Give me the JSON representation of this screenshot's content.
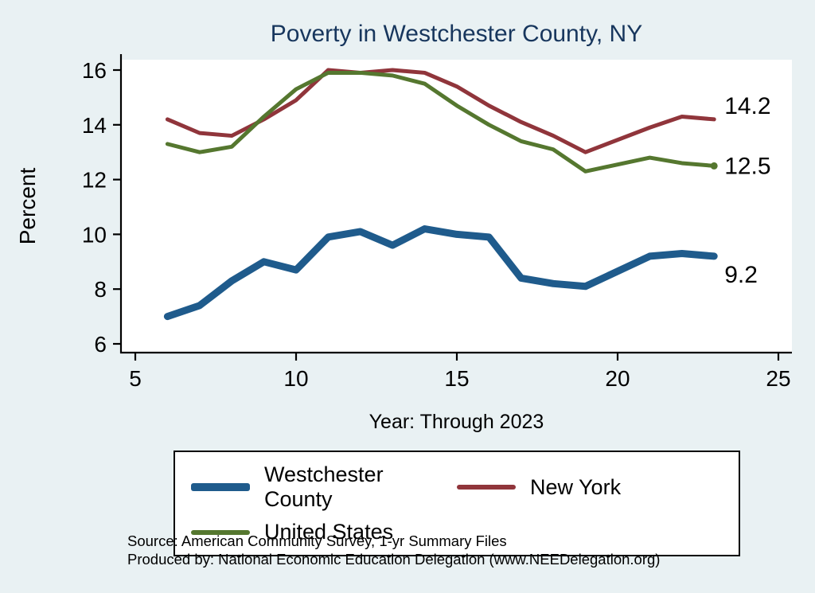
{
  "page": {
    "background": "#e9f1f3"
  },
  "chart_data": {
    "type": "line",
    "title": "Poverty in Westchester County, NY",
    "xlabel": "Year: Through 2023",
    "ylabel": "Percent",
    "xlim": [
      5,
      25
    ],
    "ylim": [
      6,
      16.4
    ],
    "x_ticks": [
      5,
      10,
      15,
      20,
      25
    ],
    "y_ticks": [
      6,
      8,
      10,
      12,
      14,
      16
    ],
    "grid": false,
    "legend_position": "bottom",
    "x": [
      6,
      7,
      8,
      9,
      10,
      11,
      12,
      13,
      14,
      15,
      16,
      17,
      18,
      19,
      21,
      22,
      23
    ],
    "series": [
      {
        "name": "Westchester County",
        "color": "#1f5b8c",
        "line_width": 9,
        "end_label": "9.2",
        "end_marker": false,
        "values": [
          7.0,
          7.4,
          8.3,
          9.0,
          8.7,
          9.9,
          10.1,
          9.6,
          10.2,
          10.0,
          9.9,
          8.4,
          8.2,
          8.1,
          9.2,
          9.3,
          9.2
        ]
      },
      {
        "name": "New York",
        "color": "#90353b",
        "line_width": 5,
        "end_label": "14.2",
        "end_marker": false,
        "values": [
          14.2,
          13.7,
          13.6,
          14.2,
          14.9,
          16.0,
          15.9,
          16.0,
          15.9,
          15.4,
          14.7,
          14.1,
          13.6,
          13.0,
          13.9,
          14.3,
          14.2
        ]
      },
      {
        "name": "United States",
        "color": "#55772f",
        "line_width": 5,
        "end_label": "12.5",
        "end_marker": true,
        "values": [
          13.3,
          13.0,
          13.2,
          14.3,
          15.3,
          15.9,
          15.9,
          15.8,
          15.5,
          14.7,
          14.0,
          13.4,
          13.1,
          12.3,
          12.8,
          12.6,
          12.5
        ]
      }
    ]
  },
  "footer": {
    "source": "Source: American Community Survey, 1-yr Summary Files",
    "produced_by": "Produced by: National Economic Education Delegation (www.NEEDelegation.org)"
  }
}
